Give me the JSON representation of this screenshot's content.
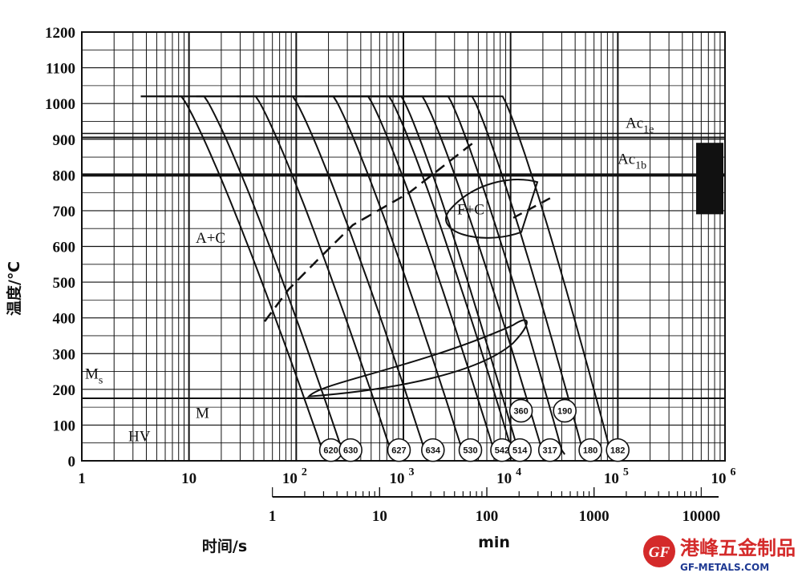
{
  "chart_data": {
    "type": "line",
    "title": "",
    "xlabel": "时间/s",
    "xlabel_min": "min",
    "ylabel": "温度/℃",
    "x_scale": "log",
    "xlim": [
      1,
      1000000
    ],
    "ylim": [
      0,
      1200
    ],
    "x_tick_labels": [
      "1",
      "10",
      "10",
      "10",
      "10",
      "10",
      "10"
    ],
    "x_tick_exponents": [
      "",
      "",
      "2",
      "3",
      "4",
      "5",
      "6"
    ],
    "x_tick_values": [
      1,
      10,
      100,
      1000,
      10000,
      100000,
      1000000
    ],
    "y_ticks": [
      0,
      100,
      200,
      300,
      400,
      500,
      600,
      700,
      800,
      900,
      1000,
      1100,
      1200
    ],
    "min_axis": {
      "ticks": [
        1,
        10,
        100,
        1000,
        10000
      ],
      "labels": [
        "1",
        "10",
        "100",
        "1000",
        "10000"
      ]
    },
    "reference_lines": [
      {
        "name": "Ac1e",
        "label": "Ac",
        "subscript": "1e",
        "y": 905
      },
      {
        "name": "Ac1b",
        "label": "Ac",
        "subscript": "1b",
        "y": 800
      },
      {
        "name": "Ms",
        "label": "M",
        "subscript": "s",
        "y": 175
      }
    ],
    "regions": [
      {
        "label": "A+C"
      },
      {
        "label": "F+C"
      },
      {
        "label": "M"
      },
      {
        "label": "HV"
      }
    ],
    "austenitizing_temperature": 1020,
    "cooling_curves": [
      {
        "hardness": 620,
        "end_time_s": 190
      },
      {
        "hardness": 630,
        "end_time_s": 290
      },
      {
        "hardness": 627,
        "end_time_s": 820
      },
      {
        "hardness": 634,
        "end_time_s": 1700
      },
      {
        "hardness": 530,
        "end_time_s": 3800
      },
      {
        "hardness": 542,
        "end_time_s": 7500
      },
      {
        "hardness": 514,
        "end_time_s": 11000
      },
      {
        "hardness": 317,
        "end_time_s": 21000
      },
      {
        "hardness": 360,
        "end_time_s": 12500
      },
      {
        "hardness": 190,
        "end_time_s": 32000
      },
      {
        "hardness": 180,
        "end_time_s": 50000
      },
      {
        "hardness": 182,
        "end_time_s": 90000
      }
    ]
  },
  "watermark": {
    "badge": "GF",
    "name": "港峰五金制品",
    "url": "GF-METALS.COM"
  }
}
